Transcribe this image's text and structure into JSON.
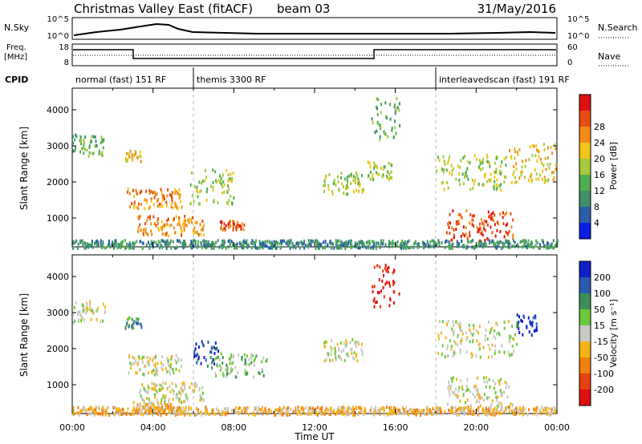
{
  "header": {
    "title": "Christmas Valley East (fitACF)",
    "beam": "beam 03",
    "date": "31/May/2016"
  },
  "panels": {
    "nsky_label": "N.Sky",
    "nsearch_label": "N.Search",
    "freq_label_1": "Freq.",
    "freq_label_2": "[MHz]",
    "nave_label": "Nave",
    "cpid_label": "CPID",
    "nsky_ticks": [
      "10^5",
      "10^0"
    ],
    "nsearch_ticks": [
      "10^5",
      "10^0"
    ],
    "freq_ticks": [
      "18",
      "8"
    ],
    "nave_ticks": [
      "60",
      "0"
    ],
    "cpid_segments": [
      {
        "label": "normal (fast) 151 RF",
        "start_hour": 0,
        "end_hour": 6
      },
      {
        "label": "themis 3300 RF",
        "start_hour": 6,
        "end_hour": 18
      },
      {
        "label": "interleavedscan (fast) 191 RF",
        "start_hour": 18,
        "end_hour": 24
      }
    ]
  },
  "chart_data": [
    {
      "type": "heatmap",
      "name": "power",
      "ylabel": "Slant Range [km]",
      "ylim": [
        200,
        4600
      ],
      "yticks": [
        "1000",
        "2000",
        "3000",
        "4000"
      ],
      "colorbar_label": "Power [dB]",
      "colorbar_ticks": [
        "4",
        "8",
        "12",
        "16",
        "20",
        "24",
        "28"
      ],
      "colors": [
        "#0a1fe6",
        "#2a5fa8",
        "#3f8f6a",
        "#4fae52",
        "#a6c93e",
        "#f2c418",
        "#f28c14",
        "#e84a12",
        "#e01010"
      ],
      "features": [
        {
          "t0": 0.0,
          "t1": 1.6,
          "r0": 2750,
          "r1": 3350,
          "level": 3
        },
        {
          "t0": 2.6,
          "t1": 3.4,
          "r0": 2600,
          "r1": 2900,
          "level": 5
        },
        {
          "t0": 2.7,
          "t1": 5.4,
          "r0": 1300,
          "r1": 1850,
          "level": 6
        },
        {
          "t0": 3.2,
          "t1": 6.5,
          "r0": 550,
          "r1": 1100,
          "level": 6
        },
        {
          "t0": 5.8,
          "t1": 8.0,
          "r0": 1400,
          "r1": 2400,
          "level": 4
        },
        {
          "t0": 7.3,
          "t1": 8.5,
          "r0": 700,
          "r1": 950,
          "level": 7
        },
        {
          "t0": 12.4,
          "t1": 14.4,
          "r0": 1700,
          "r1": 2300,
          "level": 4
        },
        {
          "t0": 14.6,
          "t1": 15.8,
          "r0": 2100,
          "r1": 2600,
          "level": 4
        },
        {
          "t0": 14.8,
          "t1": 16.2,
          "r0": 3200,
          "r1": 4400,
          "level": 3
        },
        {
          "t0": 18.0,
          "t1": 21.5,
          "r0": 1800,
          "r1": 2800,
          "level": 4
        },
        {
          "t0": 21.5,
          "t1": 24.0,
          "r0": 2000,
          "r1": 3100,
          "level": 5
        },
        {
          "t0": 18.5,
          "t1": 21.8,
          "r0": 400,
          "r1": 1250,
          "level": 7
        },
        {
          "t0": 0.0,
          "t1": 24.0,
          "r0": 200,
          "r1": 420,
          "level": 2
        }
      ]
    },
    {
      "type": "heatmap",
      "name": "velocity",
      "ylabel": "Slant Range [km]",
      "xlabel": "Time UT",
      "ylim": [
        200,
        4600
      ],
      "yticks": [
        "1000",
        "2000",
        "3000",
        "4000"
      ],
      "xticks": [
        "00:00",
        "04:00",
        "08:00",
        "12:00",
        "16:00",
        "20:00",
        "00:00"
      ],
      "colorbar_label": "Velocity [m s⁻¹]",
      "colorbar_ticks": [
        "200",
        "100",
        "50",
        "15",
        "-15",
        "-50",
        "-100",
        "-200"
      ],
      "colors": [
        "#1020c8",
        "#2a5ab0",
        "#3a8f5a",
        "#6ac93a",
        "#c8c8c2",
        "#f4b418",
        "#f08010",
        "#e84010",
        "#e01010"
      ],
      "features": [
        {
          "t0": 0.0,
          "t1": 1.6,
          "r0": 2750,
          "r1": 3350,
          "level": 4
        },
        {
          "t0": 2.6,
          "t1": 3.4,
          "r0": 2600,
          "r1": 2900,
          "level": 2
        },
        {
          "t0": 2.7,
          "t1": 5.4,
          "r0": 1300,
          "r1": 1850,
          "level": 4
        },
        {
          "t0": 3.2,
          "t1": 6.5,
          "r0": 550,
          "r1": 1100,
          "level": 4
        },
        {
          "t0": 6.0,
          "t1": 7.2,
          "r0": 1500,
          "r1": 2300,
          "level": 1
        },
        {
          "t0": 7.0,
          "t1": 9.6,
          "r0": 1200,
          "r1": 1900,
          "level": 3
        },
        {
          "t0": 3.0,
          "t1": 5.0,
          "r0": 300,
          "r1": 550,
          "level": 5
        },
        {
          "t0": 12.4,
          "t1": 14.4,
          "r0": 1700,
          "r1": 2300,
          "level": 4
        },
        {
          "t0": 14.8,
          "t1": 16.2,
          "r0": 3200,
          "r1": 4400,
          "level": 8
        },
        {
          "t0": 18.0,
          "t1": 22.0,
          "r0": 1800,
          "r1": 2800,
          "level": 4
        },
        {
          "t0": 22.0,
          "t1": 23.0,
          "r0": 2400,
          "r1": 3000,
          "level": 0
        },
        {
          "t0": 18.5,
          "t1": 21.8,
          "r0": 400,
          "r1": 1250,
          "level": 4
        },
        {
          "t0": 0.0,
          "t1": 24.0,
          "r0": 200,
          "r1": 420,
          "level": 5
        }
      ]
    }
  ]
}
